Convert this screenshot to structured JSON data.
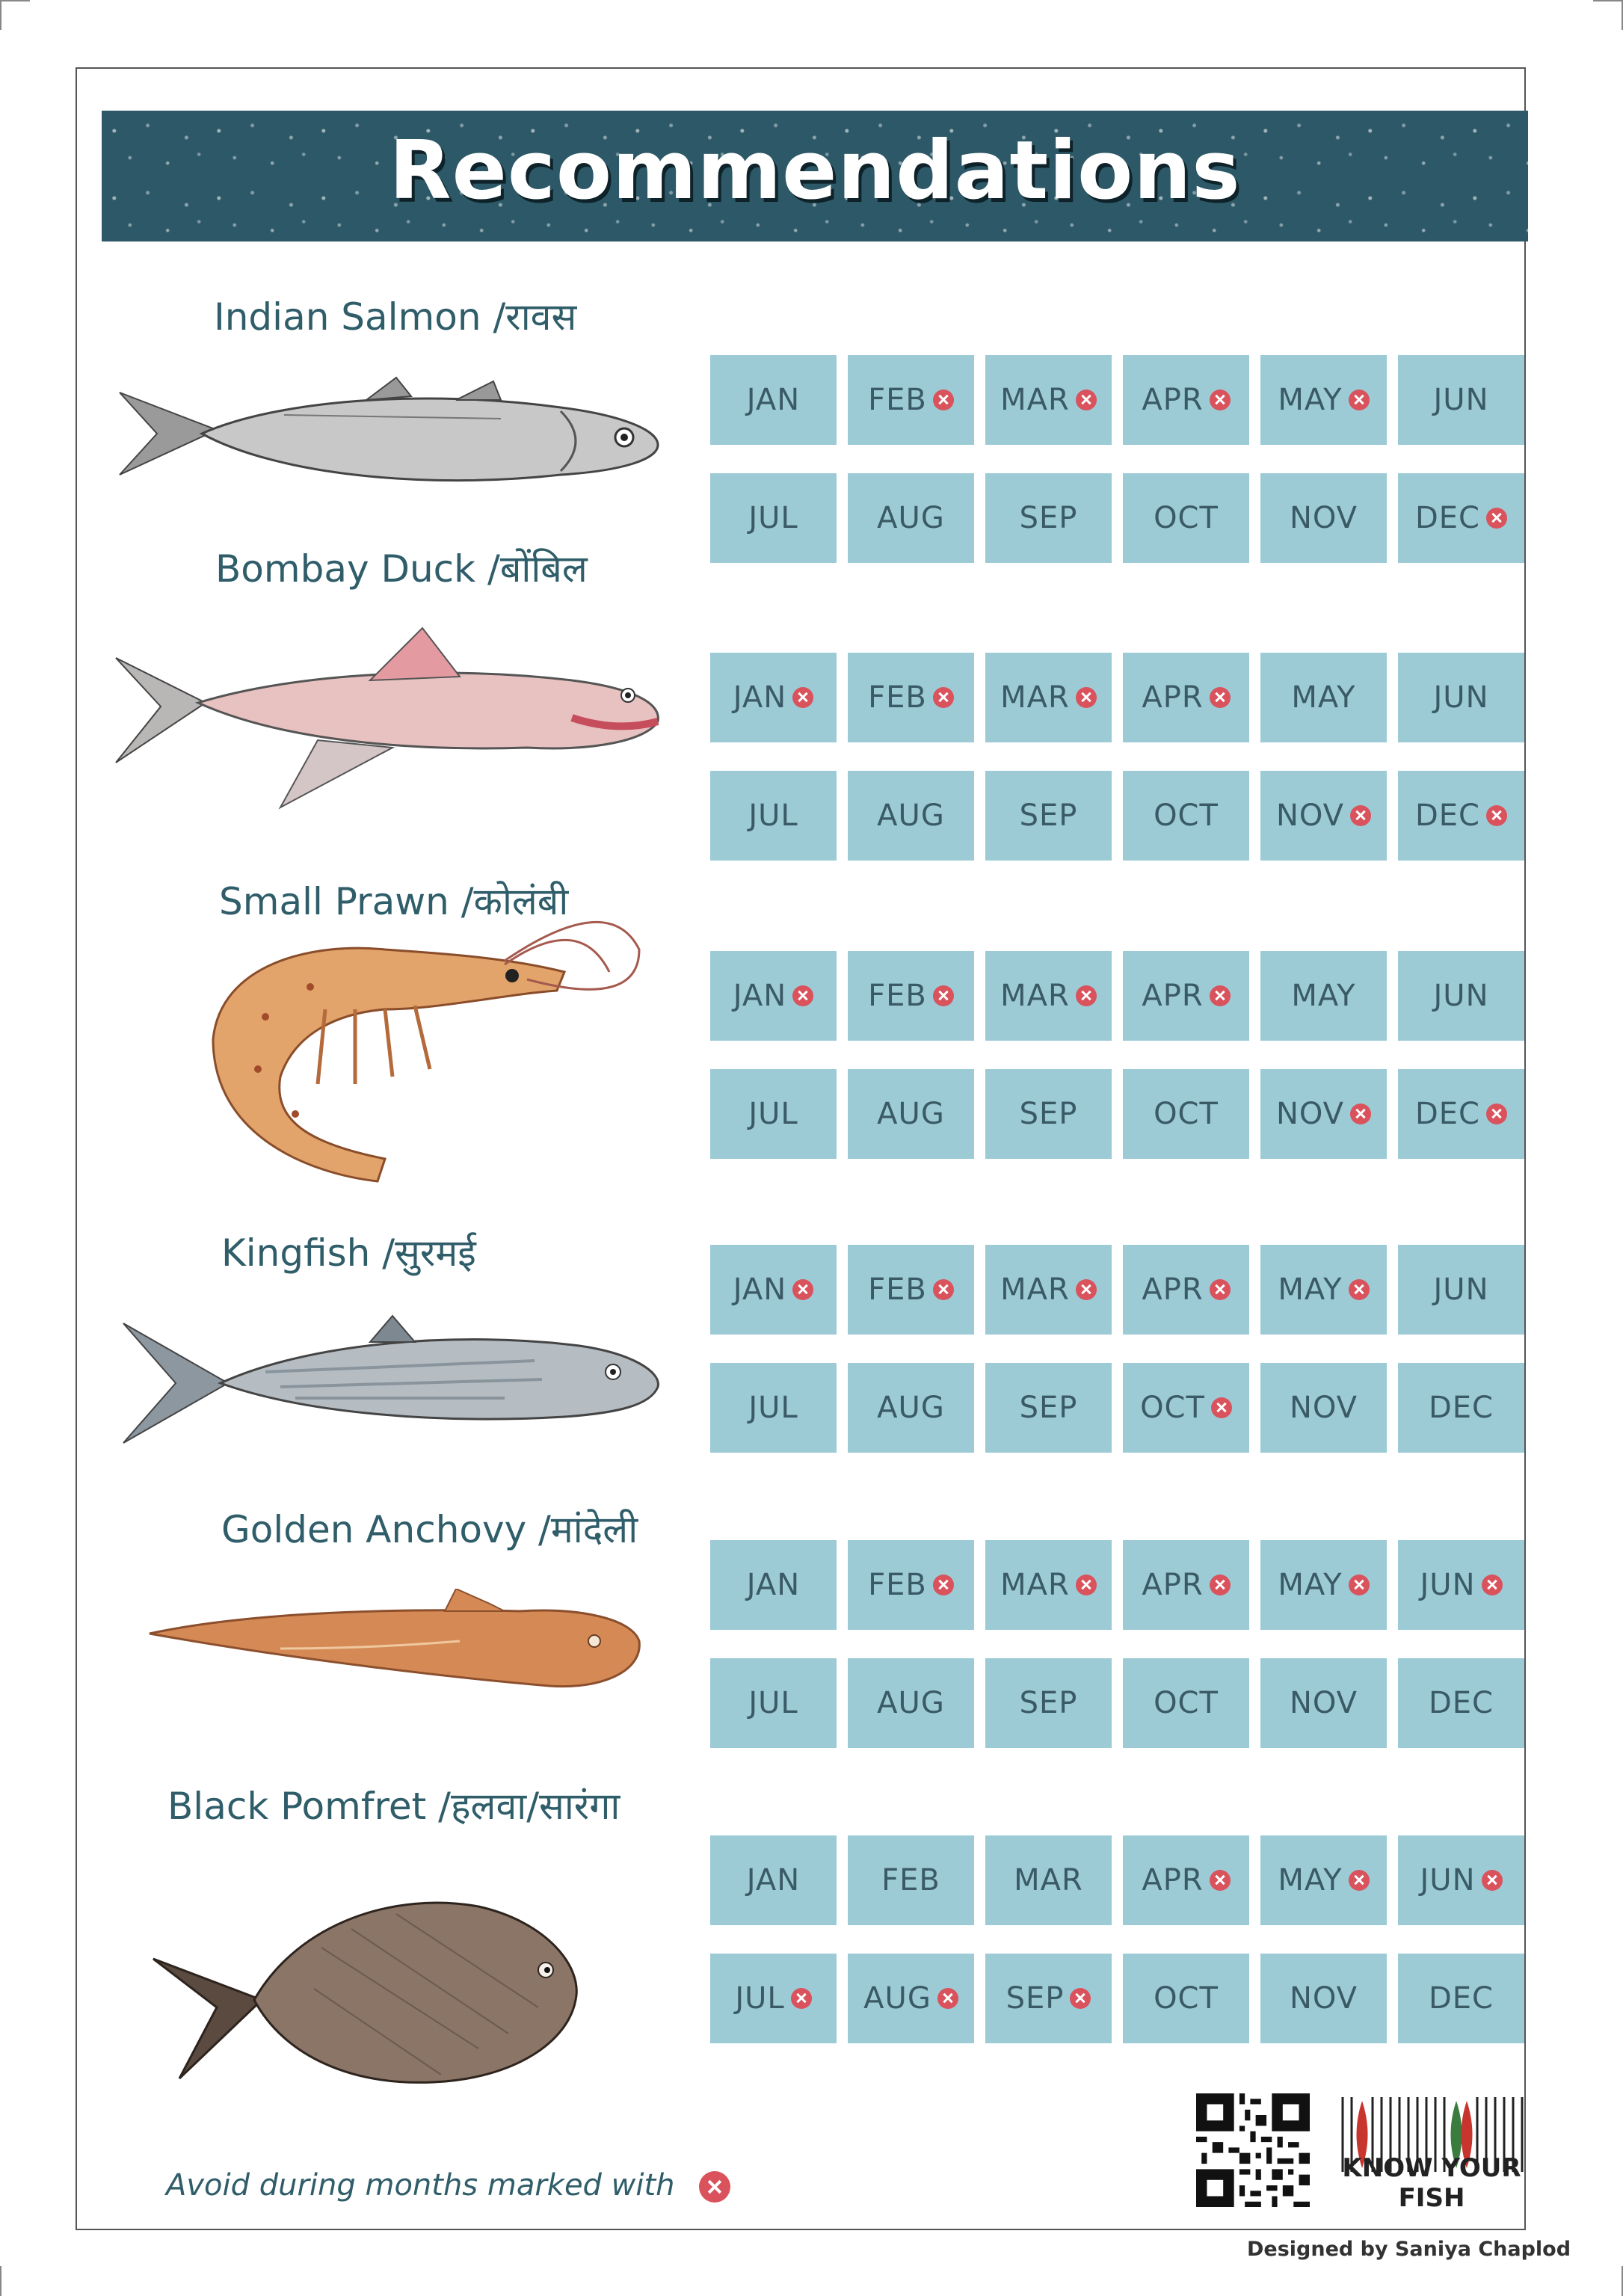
{
  "title": "Recommendations",
  "fish": [
    {
      "name": "Indian Salmon /रावस",
      "months": [
        {
          "label": "JAN",
          "avoid": false
        },
        {
          "label": "FEB",
          "avoid": true
        },
        {
          "label": "MAR",
          "avoid": true
        },
        {
          "label": "APR",
          "avoid": true
        },
        {
          "label": "MAY",
          "avoid": true
        },
        {
          "label": "JUN",
          "avoid": false
        },
        {
          "label": "JUL",
          "avoid": false
        },
        {
          "label": "AUG",
          "avoid": false
        },
        {
          "label": "SEP",
          "avoid": false
        },
        {
          "label": "OCT",
          "avoid": false
        },
        {
          "label": "NOV",
          "avoid": false
        },
        {
          "label": "DEC",
          "avoid": true
        }
      ]
    },
    {
      "name": "Bombay Duck /बोंबिल",
      "months": [
        {
          "label": "JAN",
          "avoid": true
        },
        {
          "label": "FEB",
          "avoid": true
        },
        {
          "label": "MAR",
          "avoid": true
        },
        {
          "label": "APR",
          "avoid": true
        },
        {
          "label": "MAY",
          "avoid": false
        },
        {
          "label": "JUN",
          "avoid": false
        },
        {
          "label": "JUL",
          "avoid": false
        },
        {
          "label": "AUG",
          "avoid": false
        },
        {
          "label": "SEP",
          "avoid": false
        },
        {
          "label": "OCT",
          "avoid": false
        },
        {
          "label": "NOV",
          "avoid": true
        },
        {
          "label": "DEC",
          "avoid": true
        }
      ]
    },
    {
      "name": "Small Prawn /कोलंबी",
      "months": [
        {
          "label": "JAN",
          "avoid": true
        },
        {
          "label": "FEB",
          "avoid": true
        },
        {
          "label": "MAR",
          "avoid": true
        },
        {
          "label": "APR",
          "avoid": true
        },
        {
          "label": "MAY",
          "avoid": false
        },
        {
          "label": "JUN",
          "avoid": false
        },
        {
          "label": "JUL",
          "avoid": false
        },
        {
          "label": "AUG",
          "avoid": false
        },
        {
          "label": "SEP",
          "avoid": false
        },
        {
          "label": "OCT",
          "avoid": false
        },
        {
          "label": "NOV",
          "avoid": true
        },
        {
          "label": "DEC",
          "avoid": true
        }
      ]
    },
    {
      "name": "Kingfish /सुरमई",
      "months": [
        {
          "label": "JAN",
          "avoid": true
        },
        {
          "label": "FEB",
          "avoid": true
        },
        {
          "label": "MAR",
          "avoid": true
        },
        {
          "label": "APR",
          "avoid": true
        },
        {
          "label": "MAY",
          "avoid": true
        },
        {
          "label": "JUN",
          "avoid": false
        },
        {
          "label": "JUL",
          "avoid": false
        },
        {
          "label": "AUG",
          "avoid": false
        },
        {
          "label": "SEP",
          "avoid": false
        },
        {
          "label": "OCT",
          "avoid": true
        },
        {
          "label": "NOV",
          "avoid": false
        },
        {
          "label": "DEC",
          "avoid": false
        }
      ]
    },
    {
      "name": "Golden Anchovy /मांदेली",
      "months": [
        {
          "label": "JAN",
          "avoid": false
        },
        {
          "label": "FEB",
          "avoid": true
        },
        {
          "label": "MAR",
          "avoid": true
        },
        {
          "label": "APR",
          "avoid": true
        },
        {
          "label": "MAY",
          "avoid": true
        },
        {
          "label": "JUN",
          "avoid": true
        },
        {
          "label": "JUL",
          "avoid": false
        },
        {
          "label": "AUG",
          "avoid": false
        },
        {
          "label": "SEP",
          "avoid": false
        },
        {
          "label": "OCT",
          "avoid": false
        },
        {
          "label": "NOV",
          "avoid": false
        },
        {
          "label": "DEC",
          "avoid": false
        }
      ]
    },
    {
      "name": "Black Pomfret /हलवा/सारंगा",
      "months": [
        {
          "label": "JAN",
          "avoid": false
        },
        {
          "label": "FEB",
          "avoid": false
        },
        {
          "label": "MAR",
          "avoid": false
        },
        {
          "label": "APR",
          "avoid": true
        },
        {
          "label": "MAY",
          "avoid": true
        },
        {
          "label": "JUN",
          "avoid": true
        },
        {
          "label": "JUL",
          "avoid": true
        },
        {
          "label": "AUG",
          "avoid": true
        },
        {
          "label": "SEP",
          "avoid": true
        },
        {
          "label": "OCT",
          "avoid": false
        },
        {
          "label": "NOV",
          "avoid": false
        },
        {
          "label": "DEC",
          "avoid": false
        }
      ]
    }
  ],
  "legend": "Avoid during months marked with",
  "brand": "KNOW YOUR FISH",
  "credit": "Designed by Saniya Chaplod",
  "icons": [
    "avoid-x-icon",
    "qr-code-icon",
    "know-your-fish-logo-icon"
  ],
  "colors": {
    "header": "#2c5867",
    "cell": "#9ccbd6",
    "text": "#2f5d69",
    "avoid": "#d9525c"
  }
}
